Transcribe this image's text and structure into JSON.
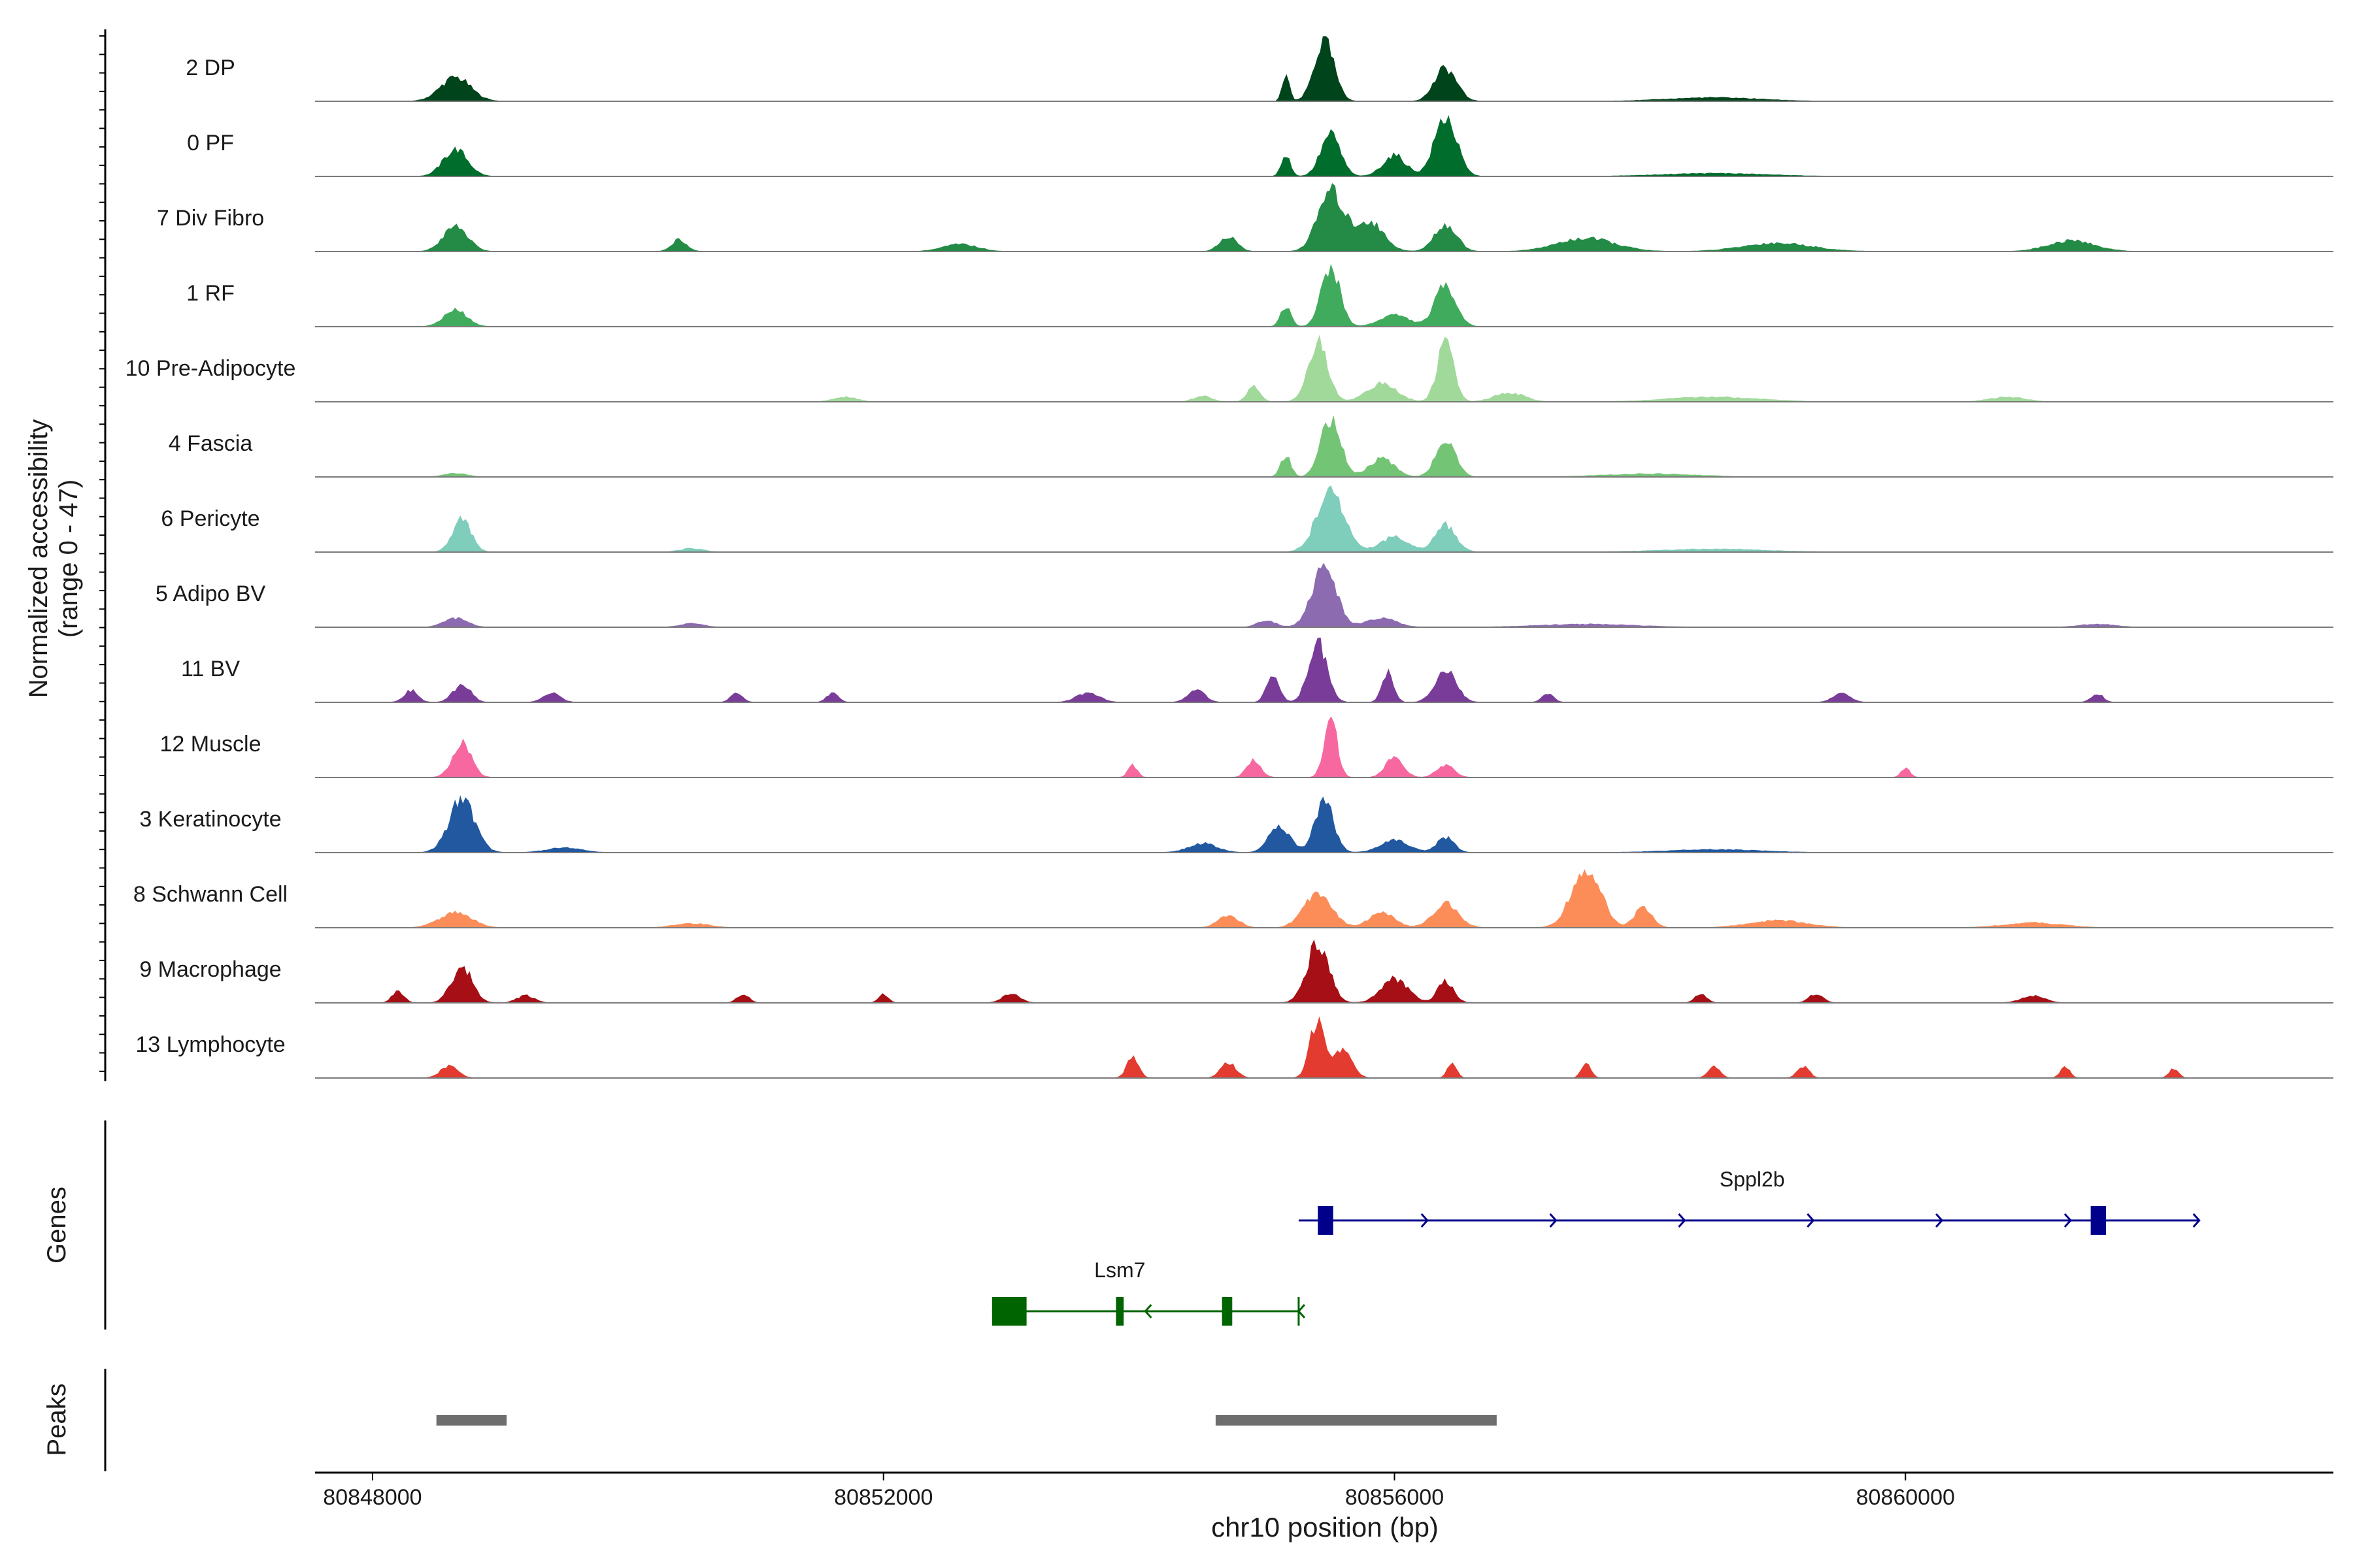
{
  "chart_data": {
    "type": "area",
    "title": "",
    "xlabel": "chr10 position (bp)",
    "ylabel": "Normalized accessibility\n(range 0 - 47)",
    "y_range": [
      0,
      47
    ],
    "xlim": [
      80847550,
      80863350
    ],
    "x_ticks": [
      80848000,
      80852000,
      80856000,
      80860000
    ],
    "x_tick_labels": [
      "80848000",
      "80852000",
      "80856000",
      "80860000"
    ],
    "panel_labels": {
      "genes": "Genes",
      "peaks": "Peaks"
    },
    "tracks": [
      {
        "name": "2 DP",
        "color": "#00441b",
        "extent": [
          80847950,
          80862300
        ],
        "peaks": [
          [
            80848650,
            0.4,
            260
          ],
          [
            80855150,
            0.45,
            60
          ],
          [
            80855450,
            1.0,
            170
          ],
          [
            80856400,
            0.55,
            190
          ],
          [
            80858500,
            0.06,
            800
          ]
        ]
      },
      {
        "name": "0 PF",
        "color": "#006d2c",
        "extent": [
          80847950,
          80862100
        ],
        "peaks": [
          [
            80848650,
            0.45,
            210
          ],
          [
            80855150,
            0.35,
            80
          ],
          [
            80855500,
            0.7,
            170
          ],
          [
            80856000,
            0.35,
            200
          ],
          [
            80856400,
            1.0,
            190
          ],
          [
            80858500,
            0.05,
            900
          ]
        ]
      },
      {
        "name": "7 Div Fibro",
        "color": "#238b45",
        "extent": [
          80847900,
          80862300
        ],
        "peaks": [
          [
            80848650,
            0.42,
            210
          ],
          [
            80850400,
            0.2,
            130
          ],
          [
            80852600,
            0.12,
            300
          ],
          [
            80854700,
            0.25,
            150
          ],
          [
            80855500,
            1.0,
            220
          ],
          [
            80855800,
            0.5,
            250
          ],
          [
            80856400,
            0.45,
            190
          ],
          [
            80857500,
            0.22,
            500
          ],
          [
            80859000,
            0.14,
            600
          ],
          [
            80861300,
            0.18,
            400
          ]
        ]
      },
      {
        "name": "1 RF",
        "color": "#41ab5d",
        "extent": [
          80847950,
          80862300
        ],
        "peaks": [
          [
            80848650,
            0.28,
            200
          ],
          [
            80855150,
            0.35,
            90
          ],
          [
            80855500,
            1.0,
            160
          ],
          [
            80856000,
            0.2,
            250
          ],
          [
            80856400,
            0.7,
            180
          ]
        ]
      },
      {
        "name": "10 Pre-Adipocyte",
        "color": "#a1d99b",
        "extent": [
          80851300,
          80861500
        ],
        "peaks": [
          [
            80851700,
            0.08,
            200
          ],
          [
            80854500,
            0.1,
            150
          ],
          [
            80854900,
            0.25,
            110
          ],
          [
            80855400,
            1.0,
            170
          ],
          [
            80855900,
            0.3,
            260
          ],
          [
            80856400,
            1.0,
            140
          ],
          [
            80856900,
            0.15,
            260
          ],
          [
            80858500,
            0.08,
            800
          ],
          [
            80860800,
            0.08,
            300
          ]
        ]
      },
      {
        "name": "4 Fascia",
        "color": "#74c476",
        "extent": [
          80847950,
          80862300
        ],
        "peaks": [
          [
            80848650,
            0.06,
            200
          ],
          [
            80855150,
            0.35,
            90
          ],
          [
            80855500,
            1.0,
            170
          ],
          [
            80855900,
            0.3,
            220
          ],
          [
            80856400,
            0.6,
            170
          ],
          [
            80858000,
            0.05,
            800
          ]
        ]
      },
      {
        "name": "6 Pericyte",
        "color": "#7fcdbb",
        "extent": [
          80847950,
          80862300
        ],
        "peaks": [
          [
            80848700,
            0.55,
            160
          ],
          [
            80850500,
            0.06,
            200
          ],
          [
            80855500,
            1.0,
            240
          ],
          [
            80856000,
            0.25,
            250
          ],
          [
            80856400,
            0.45,
            180
          ],
          [
            80858500,
            0.05,
            900
          ]
        ]
      },
      {
        "name": "5 Adipo BV",
        "color": "#8c6bb1",
        "extent": [
          80848200,
          80862000
        ],
        "peaks": [
          [
            80848650,
            0.15,
            200
          ],
          [
            80850500,
            0.06,
            200
          ],
          [
            80855000,
            0.12,
            150
          ],
          [
            80855450,
            1.0,
            210
          ],
          [
            80855900,
            0.15,
            250
          ],
          [
            80857500,
            0.05,
            800
          ],
          [
            80861500,
            0.05,
            300
          ]
        ]
      },
      {
        "name": "11 BV",
        "color": "#7a3c99",
        "extent": [
          80847950,
          80861800
        ],
        "peaks": [
          [
            80848300,
            0.2,
            120
          ],
          [
            80848700,
            0.3,
            150
          ],
          [
            80849400,
            0.15,
            150
          ],
          [
            80850850,
            0.15,
            100
          ],
          [
            80851600,
            0.15,
            100
          ],
          [
            80853600,
            0.15,
            200
          ],
          [
            80854450,
            0.2,
            150
          ],
          [
            80855050,
            0.45,
            110
          ],
          [
            80855400,
            1.0,
            160
          ],
          [
            80855950,
            0.5,
            100
          ],
          [
            80856400,
            0.55,
            180
          ],
          [
            80857200,
            0.15,
            100
          ],
          [
            80859500,
            0.15,
            150
          ],
          [
            80861500,
            0.15,
            100
          ]
        ]
      },
      {
        "name": "12 Muscle",
        "color": "#f768a1",
        "extent": [
          80848300,
          80860200
        ],
        "peaks": [
          [
            80848700,
            0.6,
            160
          ],
          [
            80853950,
            0.2,
            80
          ],
          [
            80854900,
            0.3,
            120
          ],
          [
            80855500,
            1.0,
            110
          ],
          [
            80856000,
            0.35,
            150
          ],
          [
            80856400,
            0.2,
            150
          ],
          [
            80860000,
            0.15,
            80
          ]
        ]
      },
      {
        "name": "3 Keratinocyte",
        "color": "#2158a0",
        "extent": [
          80847950,
          80862300
        ],
        "peaks": [
          [
            80848700,
            0.9,
            220
          ],
          [
            80849500,
            0.08,
            300
          ],
          [
            80854500,
            0.15,
            250
          ],
          [
            80855100,
            0.45,
            180
          ],
          [
            80855450,
            0.9,
            160
          ],
          [
            80856000,
            0.2,
            250
          ],
          [
            80856400,
            0.25,
            150
          ],
          [
            80858500,
            0.05,
            800
          ]
        ]
      },
      {
        "name": "8 Schwann Cell",
        "color": "#fc8d59",
        "extent": [
          80847950,
          80862300
        ],
        "peaks": [
          [
            80848650,
            0.25,
            280
          ],
          [
            80850500,
            0.07,
            300
          ],
          [
            80854700,
            0.2,
            180
          ],
          [
            80855400,
            0.6,
            240
          ],
          [
            80855900,
            0.25,
            220
          ],
          [
            80856400,
            0.4,
            220
          ],
          [
            80857500,
            1.0,
            250
          ],
          [
            80857950,
            0.35,
            150
          ],
          [
            80859000,
            0.12,
            500
          ],
          [
            80861000,
            0.08,
            500
          ]
        ]
      },
      {
        "name": "9 Macrophage",
        "color": "#a50f15",
        "extent": [
          80847900,
          80862300
        ],
        "peaks": [
          [
            80848200,
            0.2,
            100
          ],
          [
            80848700,
            0.6,
            180
          ],
          [
            80849200,
            0.12,
            150
          ],
          [
            80850900,
            0.15,
            100
          ],
          [
            80852000,
            0.15,
            80
          ],
          [
            80853000,
            0.15,
            150
          ],
          [
            80855400,
            1.0,
            190
          ],
          [
            80856000,
            0.4,
            230
          ],
          [
            80856400,
            0.35,
            140
          ],
          [
            80858400,
            0.15,
            100
          ],
          [
            80859300,
            0.15,
            120
          ],
          [
            80861000,
            0.12,
            200
          ]
        ]
      },
      {
        "name": "13 Lymphocyte",
        "color": "#e33b2f",
        "extent": [
          80848350,
          80862300
        ],
        "peaks": [
          [
            80848600,
            0.2,
            150
          ],
          [
            80853950,
            0.35,
            100
          ],
          [
            80854700,
            0.25,
            130
          ],
          [
            80855400,
            1.0,
            130
          ],
          [
            80855600,
            0.5,
            150
          ],
          [
            80856450,
            0.25,
            80
          ],
          [
            80857500,
            0.25,
            80
          ],
          [
            80858500,
            0.2,
            100
          ],
          [
            80859200,
            0.2,
            100
          ],
          [
            80861250,
            0.2,
            80
          ],
          [
            80862100,
            0.15,
            80
          ]
        ]
      }
    ],
    "genes": [
      {
        "name": "Sppl2b",
        "strand": "+",
        "color": "#00008b",
        "start": 80855250,
        "end": 80862300,
        "exons": [
          [
            80855400,
            80855520
          ],
          [
            80861450,
            80861570
          ]
        ]
      },
      {
        "name": "Lsm7",
        "strand": "-",
        "color": "#006400",
        "start": 80852850,
        "end": 80855250,
        "exons": [
          [
            80852850,
            80853120
          ],
          [
            80853820,
            80853880
          ],
          [
            80854650,
            80854730
          ]
        ]
      }
    ],
    "peaks_track": [
      [
        80848500,
        80849050
      ],
      [
        80854600,
        80856800
      ]
    ]
  }
}
